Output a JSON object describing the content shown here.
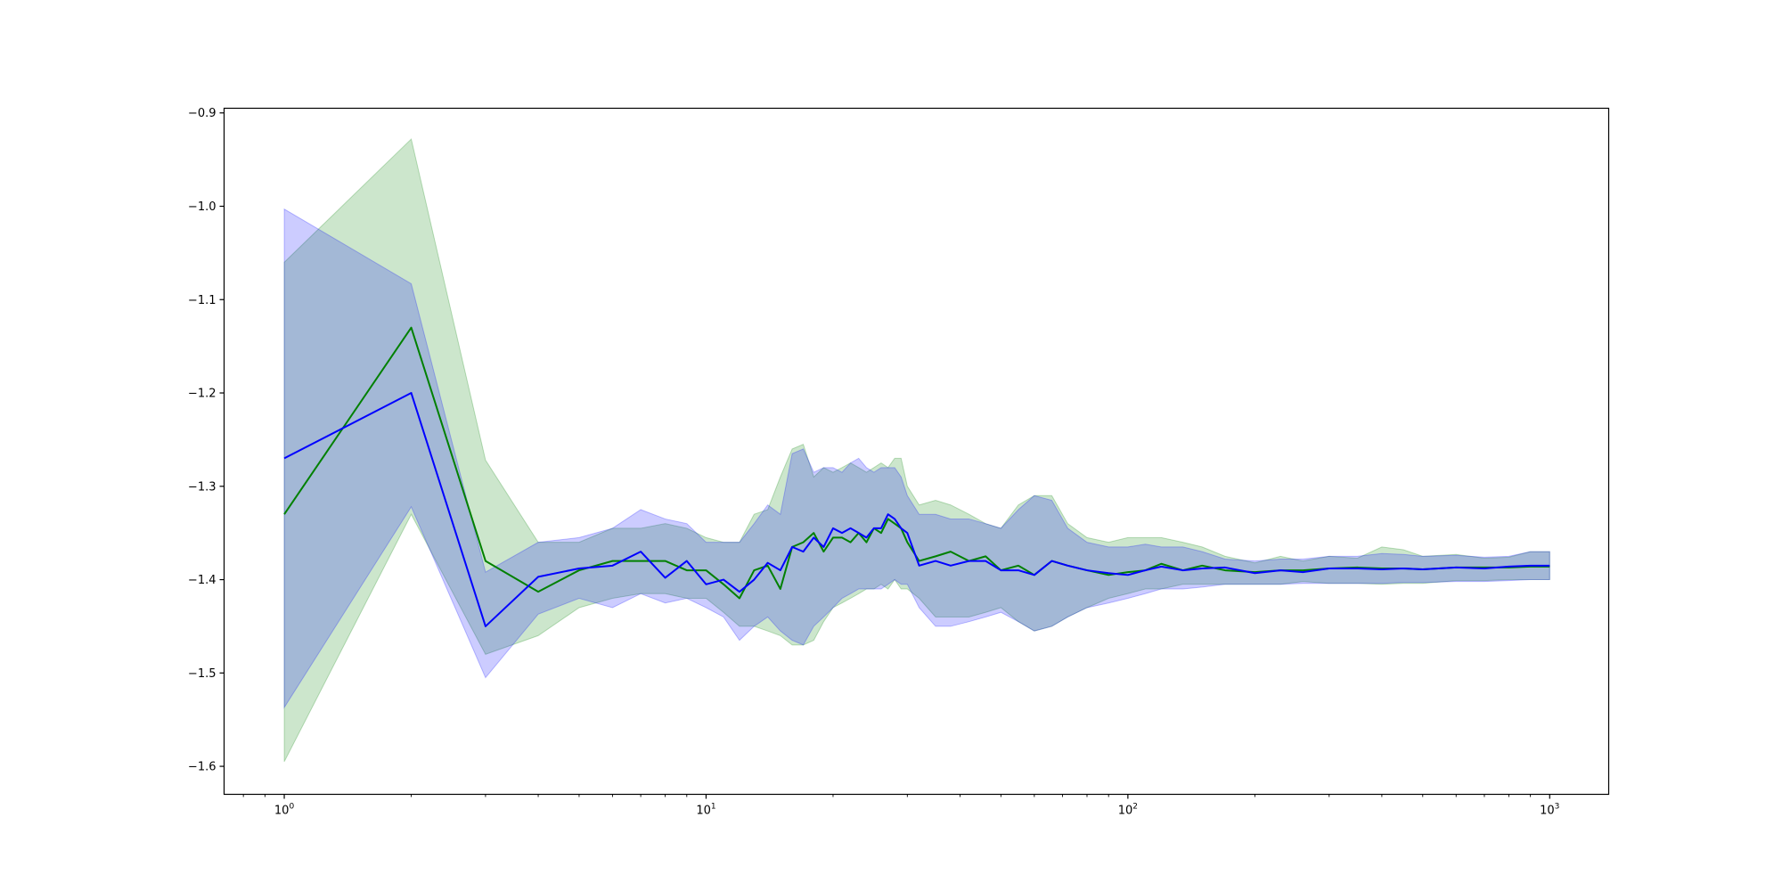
{
  "chart_data": {
    "type": "line",
    "title": "",
    "xlabel": "",
    "ylabel": "",
    "xscale": "log",
    "xlim": [
      0.72,
      1380
    ],
    "ylim": [
      -1.63,
      -0.895
    ],
    "grid": false,
    "legend": "none",
    "x_ticks": [
      {
        "value": 1,
        "base": "10",
        "exp": "0"
      },
      {
        "value": 10,
        "base": "10",
        "exp": "1"
      },
      {
        "value": 100,
        "base": "10",
        "exp": "2"
      },
      {
        "value": 1000,
        "base": "10",
        "exp": "3"
      }
    ],
    "y_ticks": [
      {
        "value": -0.9,
        "label": "−0.9"
      },
      {
        "value": -1.0,
        "label": "−1.0"
      },
      {
        "value": -1.1,
        "label": "−1.1"
      },
      {
        "value": -1.2,
        "label": "−1.2"
      },
      {
        "value": -1.3,
        "label": "−1.3"
      },
      {
        "value": -1.4,
        "label": "−1.4"
      },
      {
        "value": -1.5,
        "label": "−1.5"
      },
      {
        "value": -1.6,
        "label": "−1.6"
      }
    ],
    "series": [
      {
        "color": "#008000",
        "band_color": "#008000",
        "band_opacity": 0.2,
        "x": [
          1,
          2,
          3,
          4,
          5,
          6,
          7,
          8,
          9,
          10,
          11,
          12,
          13,
          14,
          15,
          16,
          17,
          18,
          19,
          20,
          21,
          22,
          23,
          24,
          25,
          26,
          27,
          28,
          29,
          30,
          32,
          35,
          38,
          42,
          46,
          50,
          55,
          60,
          66,
          72,
          80,
          90,
          100,
          110,
          120,
          135,
          150,
          170,
          200,
          230,
          260,
          300,
          350,
          400,
          450,
          500,
          600,
          700,
          800,
          900,
          1000
        ],
        "y": [
          -1.33,
          -1.13,
          -1.38,
          -1.413,
          -1.39,
          -1.38,
          -1.38,
          -1.38,
          -1.39,
          -1.39,
          -1.405,
          -1.42,
          -1.39,
          -1.385,
          -1.41,
          -1.365,
          -1.36,
          -1.35,
          -1.37,
          -1.355,
          -1.355,
          -1.36,
          -1.35,
          -1.36,
          -1.345,
          -1.35,
          -1.335,
          -1.34,
          -1.345,
          -1.36,
          -1.38,
          -1.375,
          -1.37,
          -1.38,
          -1.375,
          -1.39,
          -1.385,
          -1.395,
          -1.38,
          -1.385,
          -1.39,
          -1.395,
          -1.392,
          -1.39,
          -1.383,
          -1.39,
          -1.385,
          -1.39,
          -1.392,
          -1.39,
          -1.39,
          -1.388,
          -1.387,
          -1.388,
          -1.388,
          -1.389,
          -1.387,
          -1.387,
          -1.387,
          -1.386,
          -1.386
        ],
        "upper": [
          -1.06,
          -0.928,
          -1.272,
          -1.36,
          -1.36,
          -1.345,
          -1.345,
          -1.34,
          -1.345,
          -1.355,
          -1.36,
          -1.36,
          -1.33,
          -1.325,
          -1.29,
          -1.26,
          -1.255,
          -1.29,
          -1.28,
          -1.285,
          -1.28,
          -1.275,
          -1.28,
          -1.285,
          -1.28,
          -1.275,
          -1.28,
          -1.27,
          -1.27,
          -1.3,
          -1.32,
          -1.315,
          -1.32,
          -1.33,
          -1.34,
          -1.345,
          -1.32,
          -1.31,
          -1.31,
          -1.34,
          -1.355,
          -1.36,
          -1.355,
          -1.355,
          -1.355,
          -1.36,
          -1.365,
          -1.375,
          -1.382,
          -1.375,
          -1.38,
          -1.375,
          -1.377,
          -1.365,
          -1.368,
          -1.375,
          -1.373,
          -1.377,
          -1.376,
          -1.37,
          -1.37
        ],
        "lower": [
          -1.595,
          -1.33,
          -1.48,
          -1.46,
          -1.43,
          -1.42,
          -1.415,
          -1.415,
          -1.42,
          -1.42,
          -1.435,
          -1.45,
          -1.45,
          -1.455,
          -1.46,
          -1.47,
          -1.47,
          -1.465,
          -1.445,
          -1.43,
          -1.425,
          -1.42,
          -1.415,
          -1.41,
          -1.41,
          -1.405,
          -1.41,
          -1.4,
          -1.41,
          -1.41,
          -1.42,
          -1.44,
          -1.44,
          -1.44,
          -1.435,
          -1.43,
          -1.445,
          -1.455,
          -1.45,
          -1.44,
          -1.43,
          -1.42,
          -1.415,
          -1.41,
          -1.41,
          -1.405,
          -1.405,
          -1.405,
          -1.405,
          -1.405,
          -1.402,
          -1.404,
          -1.404,
          -1.405,
          -1.404,
          -1.404,
          -1.401,
          -1.401,
          -1.4,
          -1.4,
          -1.4
        ]
      },
      {
        "color": "#0000ff",
        "band_color": "#0000ff",
        "band_opacity": 0.2,
        "x": [
          1,
          2,
          3,
          4,
          5,
          6,
          7,
          8,
          9,
          10,
          11,
          12,
          13,
          14,
          15,
          16,
          17,
          18,
          19,
          20,
          21,
          22,
          23,
          24,
          25,
          26,
          27,
          28,
          29,
          30,
          32,
          35,
          38,
          42,
          46,
          50,
          55,
          60,
          66,
          72,
          80,
          90,
          100,
          110,
          120,
          135,
          150,
          170,
          200,
          230,
          260,
          300,
          350,
          400,
          450,
          500,
          600,
          700,
          800,
          900,
          1000
        ],
        "y": [
          -1.27,
          -1.2,
          -1.45,
          -1.397,
          -1.388,
          -1.385,
          -1.37,
          -1.398,
          -1.38,
          -1.405,
          -1.4,
          -1.413,
          -1.4,
          -1.382,
          -1.39,
          -1.365,
          -1.37,
          -1.355,
          -1.365,
          -1.345,
          -1.35,
          -1.345,
          -1.35,
          -1.355,
          -1.345,
          -1.345,
          -1.33,
          -1.335,
          -1.345,
          -1.35,
          -1.385,
          -1.38,
          -1.385,
          -1.38,
          -1.38,
          -1.39,
          -1.39,
          -1.395,
          -1.38,
          -1.385,
          -1.39,
          -1.393,
          -1.395,
          -1.39,
          -1.386,
          -1.39,
          -1.388,
          -1.387,
          -1.393,
          -1.39,
          -1.392,
          -1.388,
          -1.388,
          -1.389,
          -1.388,
          -1.389,
          -1.387,
          -1.388,
          -1.386,
          -1.385,
          -1.385
        ],
        "upper": [
          -1.003,
          -1.083,
          -1.392,
          -1.36,
          -1.355,
          -1.345,
          -1.325,
          -1.335,
          -1.34,
          -1.36,
          -1.36,
          -1.36,
          -1.34,
          -1.32,
          -1.33,
          -1.265,
          -1.26,
          -1.285,
          -1.28,
          -1.28,
          -1.285,
          -1.275,
          -1.27,
          -1.28,
          -1.285,
          -1.28,
          -1.28,
          -1.28,
          -1.29,
          -1.31,
          -1.33,
          -1.33,
          -1.335,
          -1.335,
          -1.34,
          -1.345,
          -1.325,
          -1.31,
          -1.315,
          -1.345,
          -1.36,
          -1.365,
          -1.365,
          -1.362,
          -1.365,
          -1.365,
          -1.37,
          -1.378,
          -1.38,
          -1.378,
          -1.378,
          -1.375,
          -1.375,
          -1.372,
          -1.373,
          -1.375,
          -1.374,
          -1.376,
          -1.375,
          -1.37,
          -1.37
        ],
        "lower": [
          -1.537,
          -1.322,
          -1.505,
          -1.437,
          -1.42,
          -1.43,
          -1.415,
          -1.425,
          -1.42,
          -1.43,
          -1.44,
          -1.465,
          -1.45,
          -1.44,
          -1.455,
          -1.465,
          -1.47,
          -1.45,
          -1.44,
          -1.43,
          -1.42,
          -1.415,
          -1.41,
          -1.41,
          -1.41,
          -1.41,
          -1.405,
          -1.4,
          -1.405,
          -1.405,
          -1.43,
          -1.45,
          -1.45,
          -1.445,
          -1.44,
          -1.435,
          -1.445,
          -1.455,
          -1.45,
          -1.44,
          -1.43,
          -1.425,
          -1.42,
          -1.415,
          -1.41,
          -1.41,
          -1.408,
          -1.405,
          -1.405,
          -1.405,
          -1.404,
          -1.404,
          -1.404,
          -1.404,
          -1.403,
          -1.403,
          -1.402,
          -1.402,
          -1.401,
          -1.4,
          -1.4
        ]
      }
    ]
  }
}
